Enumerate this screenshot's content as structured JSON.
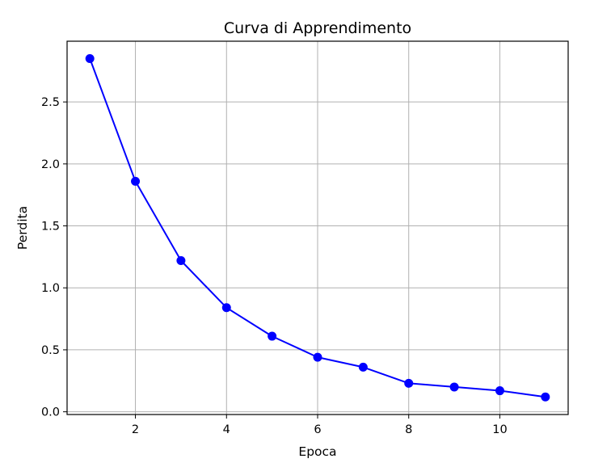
{
  "chart_data": {
    "type": "line",
    "title": "Curva di Apprendimento",
    "xlabel": "Epoca",
    "ylabel": "Perdita",
    "x": [
      1,
      2,
      3,
      4,
      5,
      6,
      7,
      8,
      9,
      10,
      11
    ],
    "series": [
      {
        "values": [
          2.85,
          1.86,
          1.22,
          0.84,
          0.61,
          0.44,
          0.36,
          0.23,
          0.2,
          0.17,
          0.12
        ],
        "color": "#0000ff",
        "marker": "circle"
      }
    ],
    "xlim": [
      0.5,
      11.5
    ],
    "ylim": [
      -0.022,
      2.99
    ],
    "xticks": [
      2,
      4,
      6,
      8,
      10
    ],
    "xtick_labels": [
      "2",
      "4",
      "6",
      "8",
      "10"
    ],
    "yticks": [
      0.0,
      0.5,
      1.0,
      1.5,
      2.0,
      2.5
    ],
    "ytick_labels": [
      "0.0",
      "0.5",
      "1.0",
      "1.5",
      "2.0",
      "2.5"
    ],
    "grid": true,
    "grid_color": "#b0b0b0"
  }
}
